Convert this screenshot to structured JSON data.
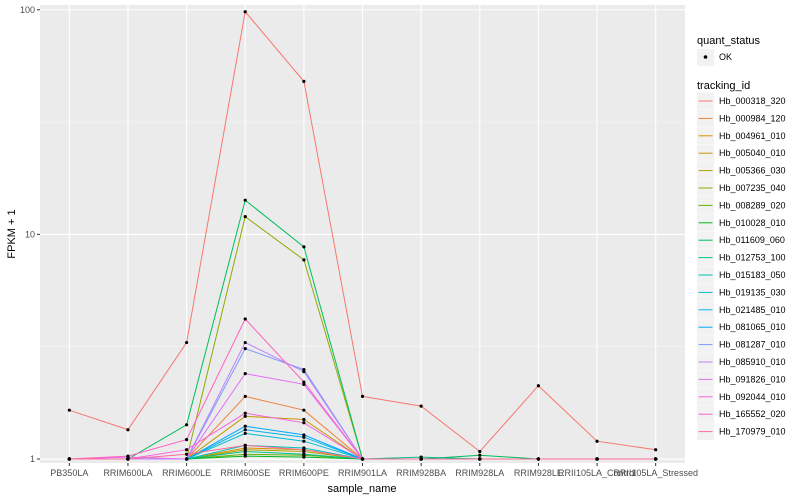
{
  "chart_data": {
    "type": "line",
    "xlabel": "sample_name",
    "ylabel": "FPKM + 1",
    "y_scale": "log10",
    "ylim": [
      0.96,
      105
    ],
    "y_ticks": [
      1,
      10,
      100
    ],
    "y_tick_labels": [
      "1",
      "10",
      "100"
    ],
    "grid": true,
    "legend_placement": "right",
    "categories": [
      "PB350LA",
      "RRIM600LA",
      "RRIM600LE",
      "RRIM600SE",
      "RRIM600PE",
      "RRIM901LA",
      "RRIM928BA",
      "RRIM928LA",
      "RRIM928LE",
      "RRII105LA_Control",
      "RRII105LA_Stressed"
    ],
    "shape_legend": {
      "title": "quant_status",
      "entries": [
        "OK"
      ]
    },
    "color_legend_title": "tracking_id",
    "series": [
      {
        "name": "Hb_000318_320",
        "color": "#F8766D",
        "values": [
          1.65,
          1.35,
          3.3,
          98,
          48,
          1.9,
          1.72,
          1.08,
          2.12,
          1.2,
          1.1
        ]
      },
      {
        "name": "Hb_000984_120",
        "color": "#EC8239",
        "values": [
          1,
          1,
          1,
          1.9,
          1.65,
          1,
          1,
          1,
          1,
          1,
          1
        ]
      },
      {
        "name": "Hb_004961_010",
        "color": "#DB8E00",
        "values": [
          1,
          1,
          1,
          1.12,
          1.1,
          1,
          1,
          1,
          1,
          1,
          1
        ]
      },
      {
        "name": "Hb_005040_010",
        "color": "#C79800",
        "values": [
          1,
          1,
          1,
          1.55,
          1.5,
          1,
          1,
          1,
          1,
          1,
          1
        ]
      },
      {
        "name": "Hb_005366_030",
        "color": "#AEA200",
        "values": [
          1,
          1,
          1,
          1.1,
          1.08,
          1,
          1,
          1,
          1,
          1,
          1
        ]
      },
      {
        "name": "Hb_007235_040",
        "color": "#8FAA00",
        "values": [
          1,
          1,
          1,
          12,
          7.7,
          1,
          1,
          1,
          1,
          1,
          1
        ]
      },
      {
        "name": "Hb_008289_020",
        "color": "#64B200",
        "values": [
          1,
          1,
          1,
          1.05,
          1.04,
          1,
          1,
          1,
          1,
          1,
          1
        ]
      },
      {
        "name": "Hb_010028_010",
        "color": "#00B81B",
        "values": [
          1,
          1,
          1,
          1.03,
          1.02,
          1,
          1,
          1,
          1,
          1,
          1
        ]
      },
      {
        "name": "Hb_011609_060",
        "color": "#00BD5C",
        "values": [
          1,
          1,
          1.42,
          14.2,
          8.8,
          1,
          1,
          1.04,
          1,
          1,
          1
        ]
      },
      {
        "name": "Hb_012753_100",
        "color": "#00C08E",
        "values": [
          1,
          1,
          1,
          1.08,
          1.05,
          1,
          1.02,
          1,
          1,
          1,
          1
        ]
      },
      {
        "name": "Hb_015183_050",
        "color": "#00C1B7",
        "values": [
          1,
          1,
          1,
          1.15,
          1.12,
          1,
          1,
          1,
          1,
          1,
          1
        ]
      },
      {
        "name": "Hb_019135_030",
        "color": "#00BDD4",
        "values": [
          1,
          1,
          1,
          1.3,
          1.2,
          1,
          1,
          1,
          1,
          1,
          1
        ]
      },
      {
        "name": "Hb_021485_010",
        "color": "#00B5EE",
        "values": [
          1,
          1,
          1,
          1.35,
          1.25,
          1,
          1,
          1,
          1,
          1,
          1
        ]
      },
      {
        "name": "Hb_081065_010",
        "color": "#00A7FF",
        "values": [
          1,
          1,
          1,
          1.4,
          1.28,
          1,
          1,
          1,
          1,
          1,
          1
        ]
      },
      {
        "name": "Hb_081287_010",
        "color": "#7F96FF",
        "values": [
          1,
          1,
          1,
          3.1,
          2.5,
          1,
          1,
          1,
          1,
          1,
          1
        ]
      },
      {
        "name": "Hb_085910_010",
        "color": "#BC81FF",
        "values": [
          1,
          1,
          1,
          3.3,
          2.45,
          1,
          1,
          1,
          1,
          1,
          1
        ]
      },
      {
        "name": "Hb_091826_010",
        "color": "#E26EF7",
        "values": [
          1,
          1.02,
          1,
          2.4,
          2.15,
          1,
          1,
          1,
          1,
          1,
          1
        ]
      },
      {
        "name": "Hb_092044_010",
        "color": "#F863DF",
        "values": [
          1,
          1,
          1.1,
          1.6,
          1.45,
          1,
          1,
          1,
          1,
          1,
          1
        ]
      },
      {
        "name": "Hb_165552_020",
        "color": "#FF62BF",
        "values": [
          1,
          1.03,
          1.22,
          4.2,
          2.2,
          1,
          1,
          1,
          1,
          1,
          1
        ]
      },
      {
        "name": "Hb_170979_010",
        "color": "#FF6A98",
        "values": [
          1,
          1,
          1.05,
          1.15,
          1.1,
          1,
          1,
          1,
          1,
          1,
          1
        ]
      }
    ]
  }
}
